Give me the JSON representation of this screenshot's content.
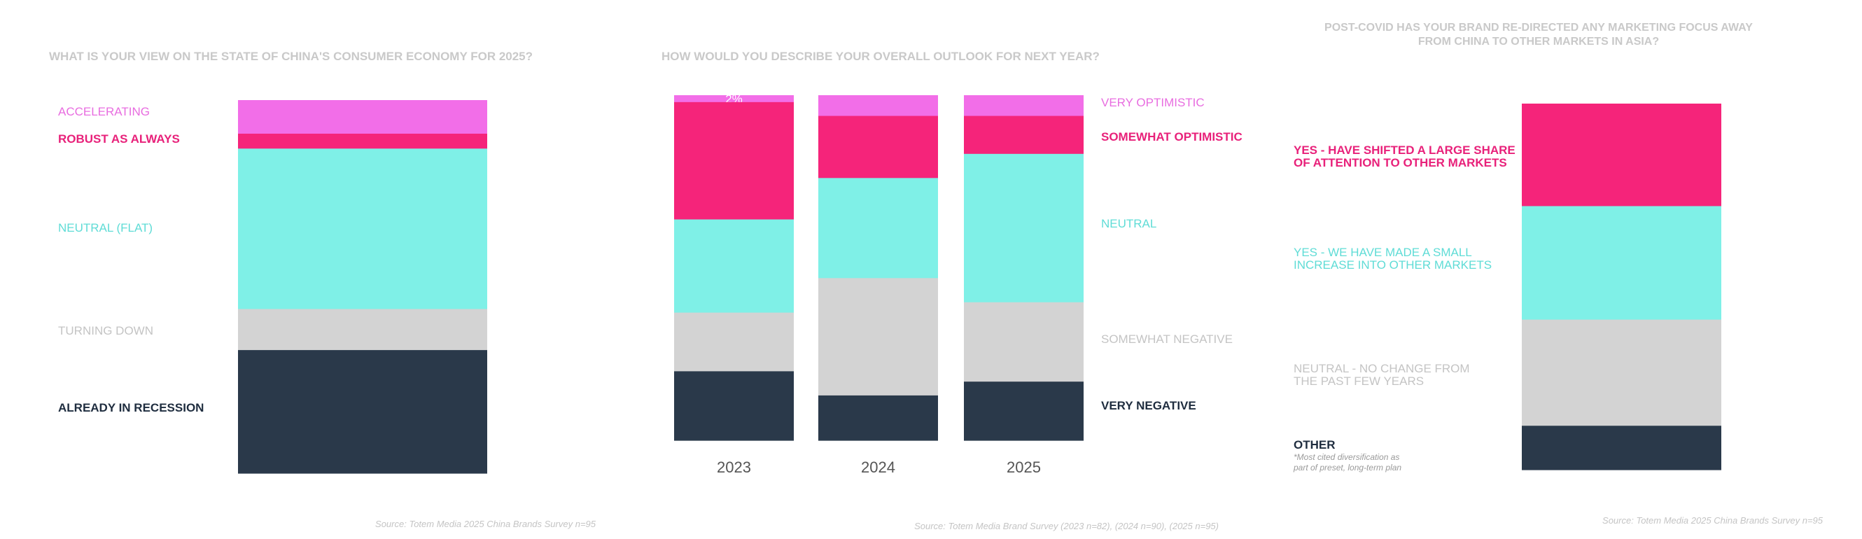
{
  "chart_data": [
    {
      "type": "bar",
      "stacked": true,
      "title": "WHAT IS YOUR VIEW ON THE STATE OF CHINA'S CONSUMER ECONOMY FOR 2025?",
      "ylim": [
        0,
        100
      ],
      "categories": [
        ""
      ],
      "series": [
        {
          "name": "ACCELERATING",
          "values": [
            9
          ],
          "color": "#f26ee8"
        },
        {
          "name": "ROBUST AS ALWAYS",
          "values": [
            4
          ],
          "color": "#f5247a"
        },
        {
          "name": "NEUTRAL (FLAT)",
          "values": [
            43
          ],
          "color": "#7ff0e7"
        },
        {
          "name": "TURNING DOWN",
          "values": [
            11
          ],
          "color": "#d3d3d3"
        },
        {
          "name": "ALREADY IN RECESSION",
          "values": [
            33
          ],
          "color": "#2a394a"
        }
      ],
      "legend_colors": [
        "#e86de0",
        "#e8217a",
        "#5fdcd6",
        "#c4c4c4",
        "#1f2d3f"
      ],
      "source": "Source: Totem Media 2025 China Brands Survey n=95"
    },
    {
      "type": "bar",
      "stacked": true,
      "title": "HOW WOULD YOU DESCRIBE YOUR OVERALL OUTLOOK FOR NEXT YEAR?",
      "ylim": [
        0,
        100
      ],
      "categories": [
        "2023",
        "2024",
        "2025"
      ],
      "series": [
        {
          "name": "VERY OPTIMISTIC",
          "values": [
            2,
            6,
            6
          ],
          "color": "#f26ee8"
        },
        {
          "name": "SOMEWHAT OPTIMISTIC",
          "values": [
            34,
            18,
            11
          ],
          "color": "#f5247a"
        },
        {
          "name": "NEUTRAL",
          "values": [
            27,
            29,
            43
          ],
          "color": "#7ff0e7"
        },
        {
          "name": "SOMEWHAT NEGATIVE",
          "values": [
            17,
            34,
            23
          ],
          "color": "#d3d3d3"
        },
        {
          "name": "VERY NEGATIVE",
          "values": [
            20,
            13,
            17
          ],
          "color": "#2a394a"
        }
      ],
      "data_labels": [
        {
          "category": "2023",
          "series": "VERY OPTIMISTIC",
          "text": "2%"
        }
      ],
      "legend_colors": [
        "#e86de0",
        "#e8217a",
        "#5fdcd6",
        "#c4c4c4",
        "#1f2d3f"
      ],
      "source": "Source: Totem Media Brand Survey (2023 n=82), (2024 n=90), (2025 n=95)"
    },
    {
      "type": "bar",
      "stacked": true,
      "title_lines": [
        "POST-COVID HAS YOUR BRAND RE-DIRECTED ANY MARKETING FOCUS AWAY",
        "FROM CHINA TO OTHER MARKETS IN ASIA?"
      ],
      "ylim": [
        0,
        100
      ],
      "categories": [
        ""
      ],
      "series": [
        {
          "name_lines": [
            "YES - HAVE SHIFTED A LARGE SHARE",
            "OF ATTENTION TO OTHER MARKETS"
          ],
          "values": [
            28
          ],
          "color": "#f5247a"
        },
        {
          "name_lines": [
            "YES - WE HAVE MADE A SMALL",
            "INCREASE INTO OTHER MARKETS"
          ],
          "values": [
            31
          ],
          "color": "#7ff0e7"
        },
        {
          "name_lines": [
            "NEUTRAL - NO CHANGE FROM",
            "THE PAST FEW YEARS"
          ],
          "values": [
            29
          ],
          "color": "#d3d3d3"
        },
        {
          "name_lines": [
            "OTHER"
          ],
          "values": [
            12
          ],
          "color": "#2a394a"
        }
      ],
      "legend_colors": [
        "#e8217a",
        "#5fdcd6",
        "#c4c4c4",
        "#1f2d3f"
      ],
      "footnote_lines": [
        "*Most cited diversification as",
        "part of preset, long-term plan"
      ],
      "source": "Source: Totem Media 2025 China Brands Survey n=95"
    }
  ]
}
